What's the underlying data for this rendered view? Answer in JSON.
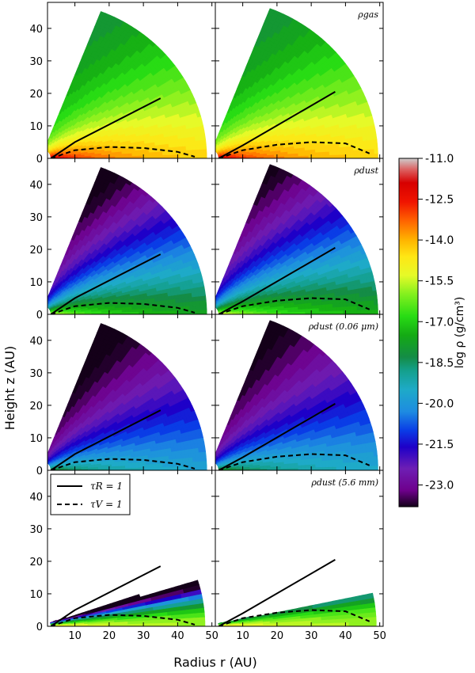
{
  "chart_data": {
    "type": "contour",
    "ylabel": "Height z (AU)",
    "xlabel": "Radius r (AU)",
    "xlim": [
      2,
      51
    ],
    "ylim": [
      0,
      48
    ],
    "x_ticks": [
      "10",
      "20",
      "30",
      "40",
      "50"
    ],
    "y_ticks": [
      "0",
      "10",
      "20",
      "30",
      "40"
    ],
    "rows": [
      {
        "title": "ρgas",
        "kind": "gas"
      },
      {
        "title": "ρdust",
        "kind": "dust"
      },
      {
        "title": "ρdust (0.06 μm)",
        "kind": "small"
      },
      {
        "title": "ρdust (5.6 mm)",
        "kind": "large"
      }
    ],
    "colorbar": {
      "label": "log ρ (g/cm³)",
      "min": -23.8,
      "max": -11.0,
      "ticks": [
        "-11.0",
        "-12.5",
        "-14.0",
        "-15.5",
        "-17.0",
        "-18.5",
        "-20.0",
        "-21.5",
        "-23.0"
      ]
    },
    "legend": {
      "items": [
        {
          "label": "τR = 1",
          "style": "solid"
        },
        {
          "label": "τV = 1",
          "style": "dashed"
        }
      ]
    },
    "lines": {
      "tauR_left": {
        "r": [
          3,
          10,
          35
        ],
        "z": [
          0,
          5,
          18.5
        ]
      },
      "tauR_right": {
        "r": [
          3,
          10,
          37
        ],
        "z": [
          0,
          4,
          20.5
        ]
      },
      "tauV_left": {
        "r": [
          3,
          10,
          20,
          30,
          40,
          45
        ],
        "z": [
          0,
          2.5,
          3.5,
          3.2,
          2,
          0.5
        ]
      },
      "tauV_right": {
        "r": [
          3,
          10,
          20,
          30,
          40,
          47
        ],
        "z": [
          0,
          2.5,
          4.2,
          5,
          4.6,
          1.5
        ]
      }
    }
  }
}
